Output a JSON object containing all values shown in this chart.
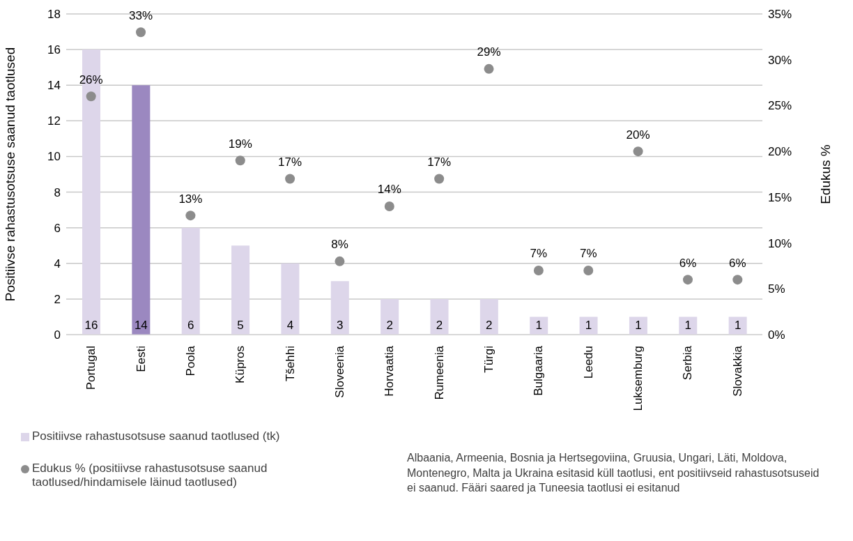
{
  "chart_data": {
    "type": "bar",
    "categories": [
      "Portugal",
      "Eesti",
      "Poola",
      "Küpros",
      "Tšehhi",
      "Sloveenia",
      "Horvaatia",
      "Rumeenia",
      "Türgi",
      "Bulgaaria",
      "Leedu",
      "Luksemburg",
      "Serbia",
      "Slovakkia"
    ],
    "series": [
      {
        "name": "Positiivse rahastusotsuse saanud taotlused (tk)",
        "color": "#ddd6ea",
        "colors": [
          "#ddd6ea",
          "#9b88c0",
          "#ddd6ea",
          "#ddd6ea",
          "#ddd6ea",
          "#ddd6ea",
          "#ddd6ea",
          "#ddd6ea",
          "#ddd6ea",
          "#ddd6ea",
          "#ddd6ea",
          "#ddd6ea",
          "#ddd6ea",
          "#ddd6ea"
        ],
        "values": [
          16,
          14,
          6,
          5,
          4,
          3,
          2,
          2,
          2,
          1,
          1,
          1,
          1,
          1
        ]
      },
      {
        "name": "Edukus % (positiivse rahastusotsuse saanud taotlused/hindamisele läinud taotlused)",
        "type": "scatter",
        "axis": "y2",
        "color": "#8c8c8c",
        "values": [
          26,
          33,
          13,
          19,
          17,
          8,
          14,
          17,
          29,
          7,
          7,
          20,
          6,
          6
        ],
        "value_labels": [
          "26%",
          "33%",
          "13%",
          "19%",
          "17%",
          "8%",
          "14%",
          "17%",
          "29%",
          "7%",
          "7%",
          "20%",
          "6%",
          "6%"
        ]
      }
    ],
    "ylabel": "Positiivse rahastusotsuse saanud taotlused",
    "y2label": "Edukus %",
    "ylim": [
      0,
      18
    ],
    "yticks": [
      0,
      2,
      4,
      6,
      8,
      10,
      12,
      14,
      16,
      18
    ],
    "y2lim": [
      0,
      35
    ],
    "y2ticks": [
      {
        "value": 0,
        "label": "0%"
      },
      {
        "value": 5,
        "label": "5%"
      },
      {
        "value": 10,
        "label": "10%"
      },
      {
        "value": 15,
        "label": "15%"
      },
      {
        "value": 20,
        "label": "20%"
      },
      {
        "value": 25,
        "label": "25%"
      },
      {
        "value": 30,
        "label": "30%"
      },
      {
        "value": 35,
        "label": "35%"
      }
    ],
    "data_labels": true,
    "grid": "y",
    "legend": "bottom left",
    "marker": "circle",
    "annotations": [
      "Albaania, Armeenia, Bosnia ja Hertsegoviina, Gruusia, Ungari, Läti, Moldova, Montenegro, Malta ja Ukraina esitasid küll taotlusi, ent positiivseid rahastusotsuseid ei saanud. Fääri saared ja Tuneesia taotlusi ei esitanud"
    ]
  }
}
